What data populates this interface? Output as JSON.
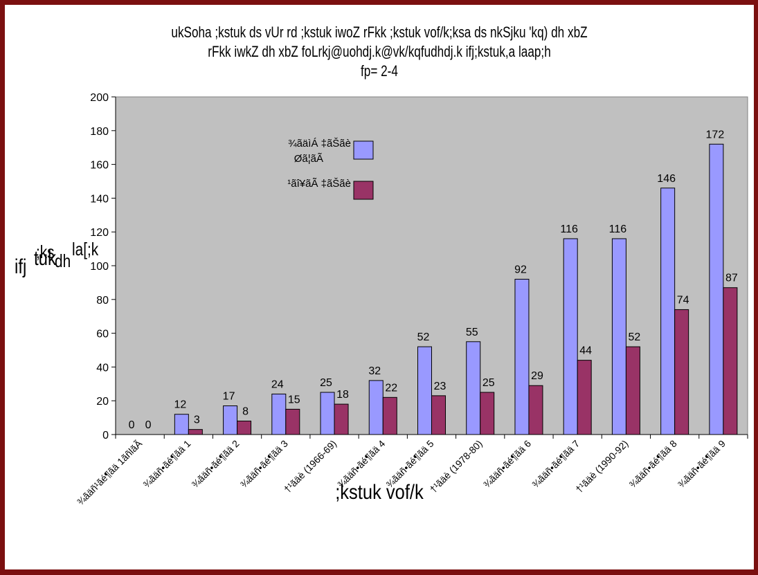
{
  "chart_data": {
    "type": "bar",
    "title_lines": [
      "ukSoha ;kstuk ds vUr rd ;kstuk iwoZ rFkk ;kstuk vof/k;ksa ds nkSjku 'kq) dh xbZ",
      "rFkk iwkZ dh xbZ foLrkj@uohdj.k@vk/kqfudhdj.k ifj;kstuk,a laap;h",
      "fp= 2-4"
    ],
    "ylabel_parts": [
      "ifj",
      ";ks",
      "tuk",
      "dh",
      "la[;k"
    ],
    "xlabel": ";kstuk vof/k",
    "categories": [
      "¾ãäñ¹ãé¶ãä 1ãñlãÃ",
      "¾ãäñ•ãé¶ãä 1",
      "¾ãäñ•ãé¶ãä 2",
      "¾ãäñ•ãé¶ãä 3",
      "†¹ãäè (1966-69)",
      "¾ãäñ•ãé¶ãä 4",
      "¾ãäñ•ãé¶ãä 5",
      "†¹ãäè (1978-80)",
      "¾ãäñ•ãé¶ãä 6",
      "¾ãäñ•ãé¶ãä 7",
      "†¹ãäè (1990-92)",
      "¾ãäñ•ãé¶ãä 8",
      "¾ãäñ•ãé¶ãä 9"
    ],
    "series": [
      {
        "name": "¾ãäìÁ ‡ãŠãè Øã¦ãÃ",
        "values": [
          0,
          12,
          17,
          24,
          25,
          32,
          52,
          55,
          92,
          116,
          116,
          146,
          172
        ],
        "color": "#9999ff"
      },
      {
        "name": "¹ãî¥ãÃ ‡ãŠãè Øã¦ãÃ",
        "values": [
          0,
          3,
          8,
          15,
          18,
          22,
          23,
          25,
          29,
          44,
          52,
          74,
          87
        ],
        "color": "#993366"
      }
    ],
    "ylim": [
      0,
      200
    ],
    "yticks": [
      0,
      20,
      40,
      60,
      80,
      100,
      120,
      140,
      160,
      180,
      200
    ],
    "grid": false,
    "plot_background": "#c0c0c0",
    "legend_position": "top-left inside"
  }
}
